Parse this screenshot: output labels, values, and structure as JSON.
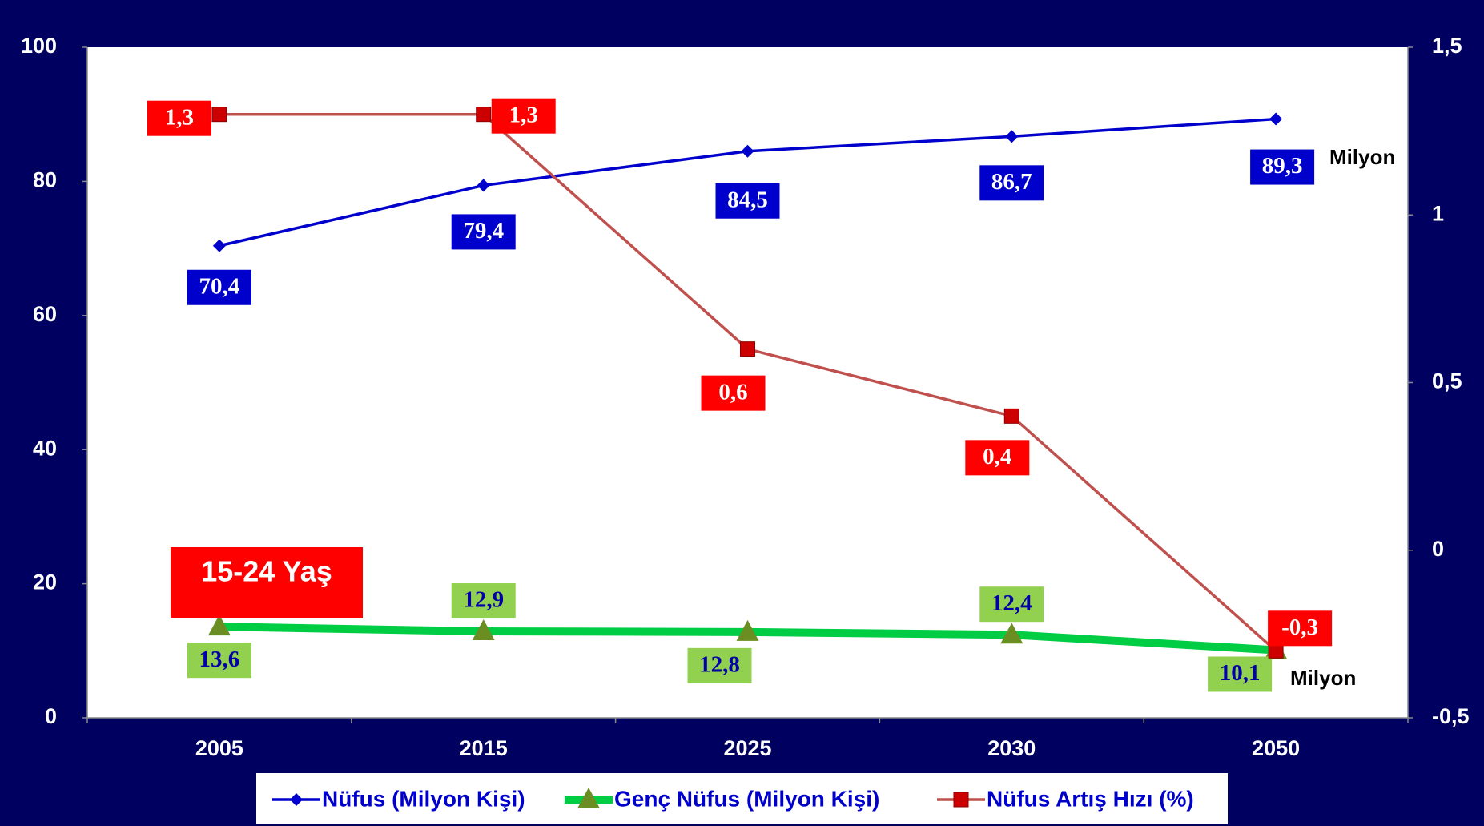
{
  "chart_data": {
    "type": "line",
    "categories": [
      "2005",
      "2015",
      "2025",
      "2030",
      "2050"
    ],
    "series": [
      {
        "name": "Nüfus (Milyon Kişi)",
        "color": "#0000cc",
        "marker": "diamond",
        "values": [
          70.4,
          79.4,
          84.5,
          86.7,
          89.3
        ],
        "value_labels": [
          "70,4",
          "79,4",
          "84,5",
          "86,7",
          "89,3"
        ]
      },
      {
        "name": "Genç Nüfus (Milyon Kişi)",
        "color": "#00cc44",
        "marker": "triangle",
        "values": [
          13.6,
          12.9,
          12.8,
          12.4,
          10.1
        ],
        "value_labels": [
          "13,6",
          "12,9",
          "12,8",
          "12,4",
          "10,1"
        ]
      },
      {
        "name": "Nüfus Artış Hızı (%)",
        "color": "#c0504d",
        "marker": "square",
        "axis": "y2",
        "values": [
          1.3,
          1.3,
          0.6,
          0.4,
          -0.3
        ],
        "value_labels": [
          "1,3",
          "1,3",
          "0,6",
          "0,4",
          "-0,3"
        ]
      }
    ],
    "ylim": [
      0,
      100
    ],
    "yticks": [
      0,
      20,
      40,
      60,
      80,
      100
    ],
    "y2lim": [
      -0.5,
      1.5
    ],
    "y2ticks": [
      {
        "value": -0.5,
        "label": "-0,5"
      },
      0,
      {
        "value": 0.5,
        "label": "0,5"
      },
      1,
      {
        "value": 1.5,
        "label": "1,5"
      }
    ],
    "annotations": [
      "15-24 Yaş",
      "Milyon",
      "Milyon"
    ],
    "legend": "bottom"
  }
}
